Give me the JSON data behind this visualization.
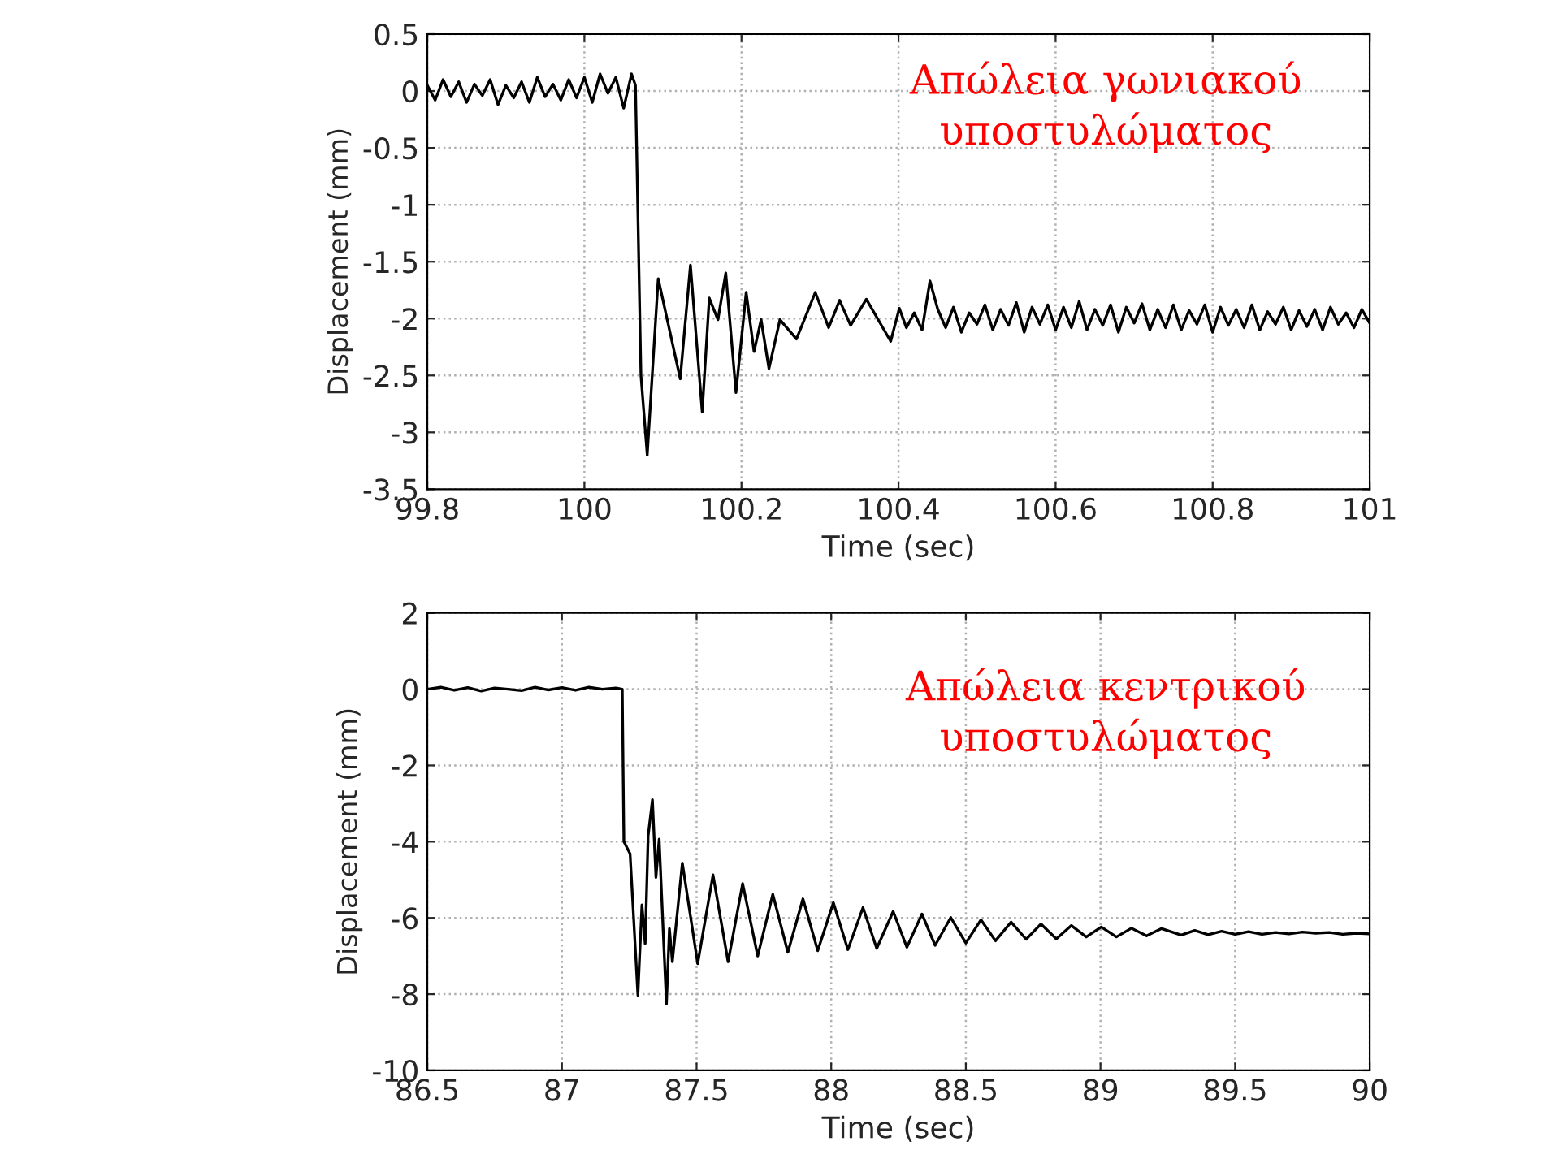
{
  "chart_data": [
    {
      "type": "line",
      "xlabel": "Time (sec)",
      "ylabel": "Displacement (mm)",
      "annotations": [
        "Απώλεια γωνιακού\nυποστυλώματος"
      ],
      "xlim": [
        99.8,
        101
      ],
      "ylim": [
        -3.5,
        0.5
      ],
      "xticks": [
        99.8,
        100,
        100.2,
        100.4,
        100.6,
        100.8,
        101
      ],
      "yticks": [
        -3.5,
        -3,
        -2.5,
        -2,
        -1.5,
        -1,
        -0.5,
        0,
        0.5
      ],
      "grid": true,
      "marker": "none",
      "line_style": "solid",
      "series": [
        {
          "color": "#000000",
          "x": [
            99.8,
            99.81,
            99.82,
            99.83,
            99.84,
            99.85,
            99.86,
            99.87,
            99.88,
            99.89,
            99.9,
            99.91,
            99.92,
            99.93,
            99.94,
            99.95,
            99.96,
            99.97,
            99.98,
            99.99,
            100.0,
            100.01,
            100.02,
            100.03,
            100.04,
            100.05,
            100.06,
            100.065,
            100.072,
            100.08,
            100.094,
            100.122,
            100.135,
            100.15,
            100.159,
            100.17,
            100.18,
            100.193,
            100.206,
            100.216,
            100.225,
            100.235,
            100.249,
            100.27,
            100.294,
            100.311,
            100.325,
            100.339,
            100.359,
            100.39,
            100.401,
            100.41,
            100.42,
            100.43,
            100.44,
            100.45,
            100.46,
            100.47,
            100.48,
            100.49,
            100.5,
            100.51,
            100.52,
            100.53,
            100.54,
            100.55,
            100.56,
            100.57,
            100.58,
            100.59,
            100.6,
            100.61,
            100.62,
            100.63,
            100.64,
            100.65,
            100.66,
            100.67,
            100.68,
            100.69,
            100.7,
            100.71,
            100.72,
            100.73,
            100.74,
            100.75,
            100.76,
            100.77,
            100.78,
            100.79,
            100.8,
            100.81,
            100.82,
            100.83,
            100.84,
            100.85,
            100.86,
            100.87,
            100.88,
            100.89,
            100.9,
            100.91,
            100.92,
            100.93,
            100.94,
            100.95,
            100.96,
            100.97,
            100.98,
            100.99,
            101.0
          ],
          "values": [
            0.05,
            -0.08,
            0.1,
            -0.05,
            0.08,
            -0.1,
            0.06,
            -0.04,
            0.1,
            -0.12,
            0.05,
            -0.06,
            0.08,
            -0.1,
            0.12,
            -0.05,
            0.06,
            -0.08,
            0.1,
            -0.06,
            0.12,
            -0.1,
            0.15,
            -0.02,
            0.12,
            -0.15,
            0.15,
            0.05,
            -2.5,
            -3.2,
            -1.65,
            -2.53,
            -1.53,
            -2.82,
            -1.82,
            -2.01,
            -1.6,
            -2.65,
            -1.77,
            -2.29,
            -2.01,
            -2.44,
            -2.01,
            -2.18,
            -1.77,
            -2.08,
            -1.84,
            -2.06,
            -1.83,
            -2.2,
            -1.91,
            -2.08,
            -1.95,
            -2.1,
            -1.67,
            -1.92,
            -2.08,
            -1.9,
            -2.12,
            -1.95,
            -2.05,
            -1.88,
            -2.1,
            -1.92,
            -2.06,
            -1.86,
            -2.12,
            -1.9,
            -2.05,
            -1.88,
            -2.1,
            -1.9,
            -2.08,
            -1.85,
            -2.1,
            -1.92,
            -2.06,
            -1.88,
            -2.12,
            -1.9,
            -2.04,
            -1.87,
            -2.1,
            -1.92,
            -2.08,
            -1.88,
            -2.1,
            -1.93,
            -2.05,
            -1.88,
            -2.12,
            -1.9,
            -2.06,
            -1.92,
            -2.08,
            -1.88,
            -2.1,
            -1.94,
            -2.05,
            -1.9,
            -2.1,
            -1.93,
            -2.07,
            -1.92,
            -2.1,
            -1.9,
            -2.05,
            -1.95,
            -2.08,
            -1.92,
            -2.04
          ]
        }
      ]
    },
    {
      "type": "line",
      "xlabel": "Time (sec)",
      "ylabel": "Displacement (mm)",
      "annotations": [
        "Απώλεια κεντρικού\nυποστυλώματος"
      ],
      "xlim": [
        86.5,
        90
      ],
      "ylim": [
        -10,
        2
      ],
      "xticks": [
        86.5,
        87,
        87.5,
        88,
        88.5,
        89,
        89.5,
        90
      ],
      "yticks": [
        -10,
        -8,
        -6,
        -4,
        -2,
        0,
        2
      ],
      "grid": true,
      "marker": "none",
      "line_style": "solid",
      "series": [
        {
          "color": "#000000",
          "x": [
            86.5,
            86.55,
            86.6,
            86.65,
            86.7,
            86.75,
            86.8,
            86.85,
            86.9,
            86.95,
            87.0,
            87.05,
            87.1,
            87.15,
            87.2,
            87.224,
            87.23,
            87.253,
            87.282,
            87.297,
            87.309,
            87.32,
            87.336,
            87.349,
            87.361,
            87.377,
            87.388,
            87.399,
            87.41,
            87.447,
            87.504,
            87.561,
            87.617,
            87.671,
            87.727,
            87.783,
            87.839,
            87.895,
            87.95,
            88.008,
            88.062,
            88.118,
            88.169,
            88.23,
            88.281,
            88.337,
            88.386,
            88.444,
            88.5,
            88.556,
            88.61,
            88.668,
            88.724,
            88.779,
            88.836,
            88.892,
            88.947,
            89.003,
            89.059,
            89.115,
            89.171,
            89.227,
            89.3,
            89.35,
            89.4,
            89.45,
            89.5,
            89.55,
            89.6,
            89.65,
            89.7,
            89.75,
            89.8,
            89.85,
            89.9,
            89.95,
            90.0
          ],
          "values": [
            0.0,
            0.05,
            -0.03,
            0.04,
            -0.05,
            0.03,
            0.0,
            -0.04,
            0.05,
            -0.02,
            0.04,
            -0.03,
            0.05,
            0.0,
            0.03,
            0.0,
            -4.0,
            -4.32,
            -8.03,
            -5.66,
            -6.68,
            -3.85,
            -2.9,
            -4.94,
            -3.93,
            -6.52,
            -8.26,
            -6.28,
            -7.15,
            -4.56,
            -7.2,
            -4.87,
            -7.15,
            -5.1,
            -7.0,
            -5.38,
            -6.9,
            -5.5,
            -6.86,
            -5.6,
            -6.83,
            -5.73,
            -6.8,
            -5.83,
            -6.77,
            -5.9,
            -6.72,
            -5.99,
            -6.66,
            -6.05,
            -6.6,
            -6.11,
            -6.56,
            -6.16,
            -6.55,
            -6.2,
            -6.5,
            -6.24,
            -6.5,
            -6.27,
            -6.47,
            -6.28,
            -6.45,
            -6.33,
            -6.44,
            -6.35,
            -6.43,
            -6.36,
            -6.43,
            -6.38,
            -6.42,
            -6.37,
            -6.4,
            -6.38,
            -6.43,
            -6.4,
            -6.42
          ]
        }
      ]
    }
  ]
}
